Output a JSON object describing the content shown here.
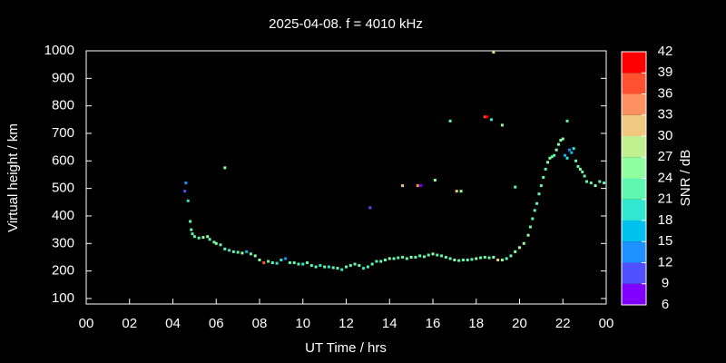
{
  "chart_data": {
    "type": "scatter",
    "title": "2025-04-08. f = 4010 kHz",
    "xlabel": "UT Time / hrs",
    "ylabel": "Virtual height / km",
    "xlim": [
      0,
      24
    ],
    "xticks": [
      {
        "value": 0,
        "label": "00"
      },
      {
        "value": 2,
        "label": "02"
      },
      {
        "value": 4,
        "label": "04"
      },
      {
        "value": 6,
        "label": "06"
      },
      {
        "value": 8,
        "label": "08"
      },
      10,
      12,
      14,
      16,
      18,
      20,
      22,
      {
        "value": 24,
        "label": "00"
      }
    ],
    "ylim": [
      80,
      1000
    ],
    "yticks": [
      100,
      200,
      300,
      400,
      500,
      600,
      700,
      800,
      900,
      1000
    ],
    "x": [
      4.6,
      4.55,
      4.7,
      4.8,
      4.85,
      4.9,
      5.0,
      5.2,
      5.4,
      5.6,
      5.7,
      5.9,
      6.0,
      6.2,
      6.4,
      6.6,
      6.8,
      7.0,
      7.2,
      7.4,
      7.6,
      7.8,
      8.0,
      8.2,
      8.4,
      8.6,
      8.8,
      9.0,
      9.2,
      9.4,
      9.6,
      9.8,
      10.0,
      10.2,
      10.4,
      10.6,
      10.8,
      11.0,
      11.2,
      11.4,
      11.6,
      11.8,
      12.0,
      12.2,
      12.4,
      12.6,
      12.8,
      13.0,
      13.2,
      13.4,
      13.6,
      13.8,
      14.0,
      14.2,
      14.4,
      14.6,
      14.8,
      15.0,
      15.2,
      15.4,
      15.6,
      15.8,
      16.0,
      16.2,
      16.4,
      16.6,
      16.8,
      17.0,
      17.2,
      17.4,
      17.6,
      17.8,
      18.0,
      18.2,
      18.4,
      18.6,
      18.8,
      19.0,
      19.2,
      19.4,
      19.6,
      19.8,
      20.0,
      20.2,
      20.4,
      20.5,
      20.6,
      20.7,
      20.8,
      20.9,
      21.0,
      21.1,
      21.2,
      21.3,
      21.4,
      21.5,
      21.6,
      21.7,
      21.8,
      21.9,
      22.0,
      22.1,
      22.2,
      22.3,
      22.4,
      22.5,
      22.6,
      22.7,
      22.8,
      22.9,
      23.0,
      23.1,
      23.3,
      23.5,
      23.7,
      23.9,
      6.4,
      13.1,
      14.6,
      15.3,
      15.45,
      16.1,
      16.8,
      17.1,
      17.3,
      18.4,
      18.5,
      18.7,
      19.2,
      18.8,
      19.8,
      22.2
    ],
    "values": [
      520,
      490,
      455,
      380,
      350,
      335,
      325,
      320,
      322,
      325,
      315,
      305,
      300,
      295,
      280,
      275,
      270,
      268,
      265,
      270,
      262,
      255,
      240,
      230,
      235,
      230,
      228,
      240,
      245,
      230,
      230,
      225,
      225,
      230,
      220,
      215,
      220,
      215,
      215,
      212,
      210,
      205,
      215,
      220,
      225,
      220,
      210,
      215,
      225,
      235,
      235,
      240,
      245,
      245,
      248,
      250,
      245,
      250,
      250,
      255,
      252,
      258,
      262,
      258,
      255,
      250,
      245,
      240,
      238,
      240,
      240,
      242,
      245,
      248,
      250,
      248,
      250,
      240,
      240,
      245,
      255,
      270,
      285,
      300,
      330,
      360,
      390,
      420,
      445,
      480,
      510,
      540,
      570,
      595,
      610,
      615,
      620,
      640,
      660,
      675,
      680,
      620,
      610,
      640,
      630,
      645,
      600,
      580,
      570,
      560,
      545,
      525,
      520,
      510,
      525,
      520,
      575,
      430,
      510,
      510,
      510,
      530,
      745,
      490,
      490,
      760,
      760,
      750,
      730,
      995,
      505,
      745
    ],
    "snr": [
      12,
      9,
      18,
      21,
      21,
      22,
      22,
      23,
      24,
      24,
      22,
      23,
      24,
      22,
      21,
      20,
      22,
      21,
      24,
      15,
      23,
      24,
      26,
      36,
      22,
      21,
      20,
      18,
      13,
      21,
      22,
      21,
      20,
      22,
      21,
      22,
      19,
      21,
      20,
      22,
      21,
      20,
      22,
      23,
      22,
      21,
      20,
      22,
      23,
      21,
      22,
      23,
      24,
      22,
      21,
      23,
      22,
      24,
      23,
      22,
      21,
      23,
      24,
      22,
      21,
      23,
      22,
      24,
      23,
      22,
      21,
      23,
      24,
      22,
      21,
      23,
      24,
      31,
      24,
      22,
      23,
      24,
      25,
      26,
      24,
      23,
      22,
      21,
      22,
      23,
      21,
      22,
      23,
      24,
      24,
      22,
      23,
      24,
      24,
      25,
      24,
      16,
      18,
      14,
      15,
      19,
      22,
      23,
      24,
      22,
      21,
      22,
      23,
      24,
      22,
      23,
      25,
      10,
      31,
      34,
      8,
      26,
      22,
      30,
      24,
      37,
      40,
      19,
      26,
      27,
      21,
      23
    ],
    "colorbar": {
      "label": "SNR / dB",
      "lim": [
        6,
        42
      ],
      "ticks": [
        6,
        9,
        12,
        15,
        18,
        21,
        24,
        27,
        30,
        33,
        36,
        39,
        42
      ],
      "colors": [
        "#8000ff",
        "#5050ff",
        "#1e90ff",
        "#00c0f0",
        "#30e8d0",
        "#60f8b0",
        "#90ffa0",
        "#c0f090",
        "#f0c880",
        "#ff9060",
        "#ff5030",
        "#ff0000"
      ]
    }
  }
}
